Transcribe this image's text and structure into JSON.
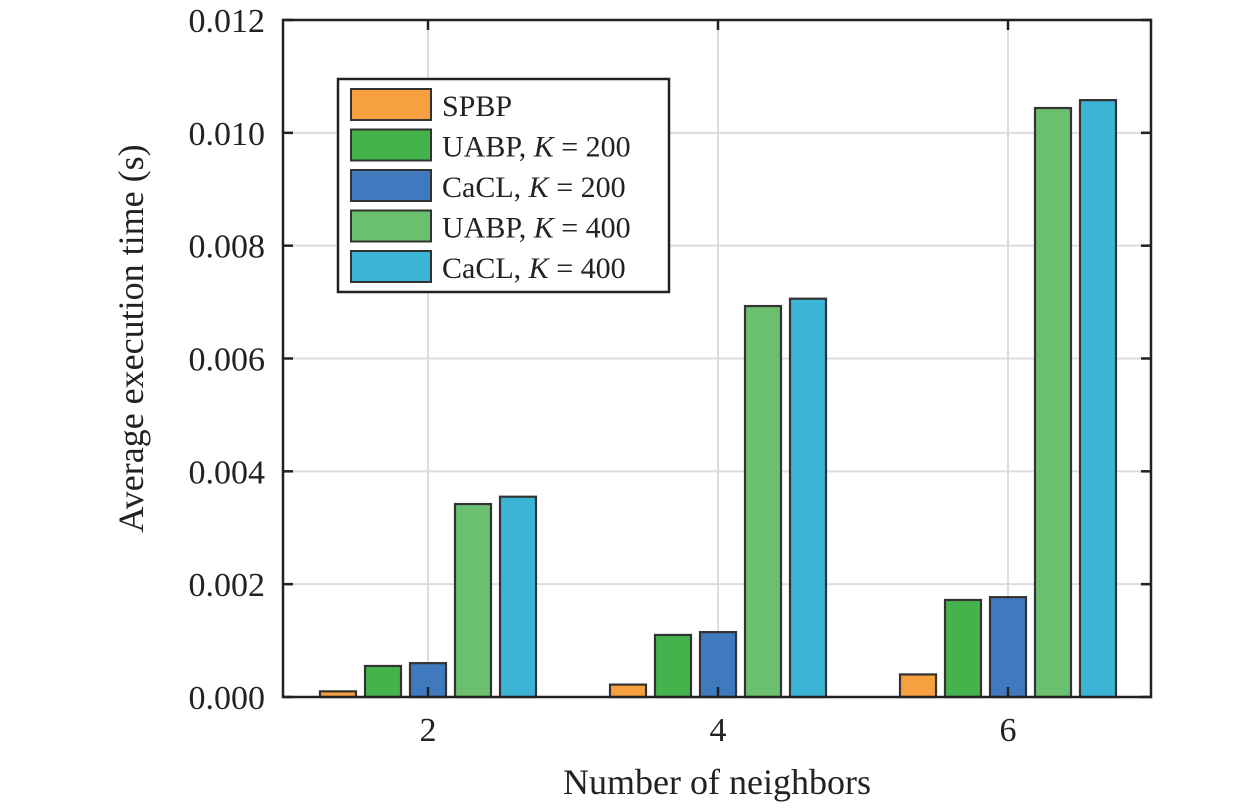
{
  "chart_data": {
    "type": "bar",
    "xlabel": "Number of neighbors",
    "ylabel": "Average execution time (s)",
    "categories": [
      "2",
      "4",
      "6"
    ],
    "ylim": [
      0,
      0.012
    ],
    "yticks": [
      "0.000",
      "0.002",
      "0.004",
      "0.006",
      "0.008",
      "0.010",
      "0.012"
    ],
    "grid": true,
    "legend_position": "top-left",
    "series": [
      {
        "name": "SPBP",
        "label_main": "SPBP",
        "label_italic": "",
        "label_tail": "",
        "color": "#f7a040",
        "values": [
          0.0001,
          0.00022,
          0.0004
        ]
      },
      {
        "name": "UABP, K = 200",
        "label_main": "UABP, ",
        "label_italic": "K",
        "label_tail": " = 200",
        "color": "#45b34c",
        "values": [
          0.00055,
          0.0011,
          0.00172
        ]
      },
      {
        "name": "CaCL, K = 200",
        "label_main": "CaCL, ",
        "label_italic": "K",
        "label_tail": " = 200",
        "color": "#3f7abf",
        "values": [
          0.0006,
          0.00115,
          0.00177
        ]
      },
      {
        "name": "UABP, K = 400",
        "label_main": "UABP, ",
        "label_italic": "K",
        "label_tail": " = 400",
        "color": "#6bc070",
        "values": [
          0.00342,
          0.00693,
          0.01044
        ]
      },
      {
        "name": "CaCL, K = 400",
        "label_main": "CaCL, ",
        "label_italic": "K",
        "label_tail": " = 400",
        "color": "#3cb4d5",
        "values": [
          0.00355,
          0.00706,
          0.01058
        ]
      }
    ]
  }
}
